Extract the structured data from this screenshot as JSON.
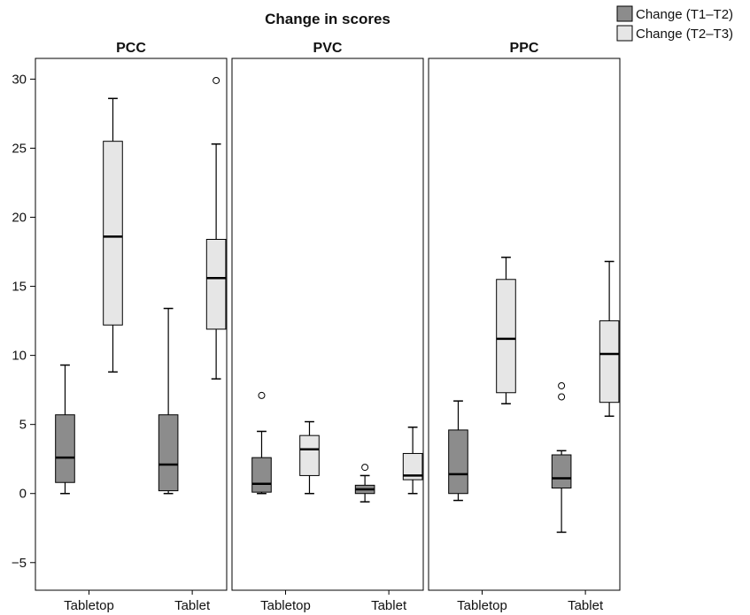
{
  "chart_data": {
    "type": "boxplot",
    "title": "Change in scores",
    "legend": {
      "placement": "top-right",
      "entries": [
        {
          "label": "Change (T1–T2)",
          "color": "#8c8c8c"
        },
        {
          "label": "Change (T2–T3)",
          "color": "#e6e6e6"
        }
      ]
    },
    "ylim": [
      -7,
      31.5
    ],
    "y_ticks": [
      -5,
      0,
      5,
      10,
      15,
      20,
      25,
      30
    ],
    "y_tick_labels": [
      "−5",
      "0",
      "5",
      "10",
      "15",
      "20",
      "25",
      "30"
    ],
    "grid": false,
    "panels": [
      {
        "title": "PCC",
        "categories": [
          "Tabletop",
          "Tablet"
        ],
        "groups": [
          {
            "category": "Tabletop",
            "series": "Change (T1–T2)",
            "min": 0,
            "q1": 0.8,
            "median": 2.6,
            "q3": 5.7,
            "max": 9.3,
            "outliers": []
          },
          {
            "category": "Tabletop",
            "series": "Change (T2–T3)",
            "min": 8.8,
            "q1": 12.2,
            "median": 18.6,
            "q3": 25.5,
            "max": 28.6,
            "outliers": []
          },
          {
            "category": "Tablet",
            "series": "Change (T1–T2)",
            "min": 0,
            "q1": 0.2,
            "median": 2.1,
            "q3": 5.7,
            "max": 13.4,
            "outliers": []
          },
          {
            "category": "Tablet",
            "series": "Change (T2–T3)",
            "min": 8.3,
            "q1": 11.9,
            "median": 15.6,
            "q3": 18.4,
            "max": 25.3,
            "outliers": [
              29.9
            ]
          }
        ]
      },
      {
        "title": "PVC",
        "categories": [
          "Tabletop",
          "Tablet"
        ],
        "groups": [
          {
            "category": "Tabletop",
            "series": "Change (T1–T2)",
            "min": 0,
            "q1": 0.1,
            "median": 0.7,
            "q3": 2.6,
            "max": 4.5,
            "outliers": [
              7.1
            ]
          },
          {
            "category": "Tabletop",
            "series": "Change (T2–T3)",
            "min": 0,
            "q1": 1.3,
            "median": 3.2,
            "q3": 4.2,
            "max": 5.2,
            "outliers": []
          },
          {
            "category": "Tablet",
            "series": "Change (T1–T2)",
            "min": -0.6,
            "q1": 0.0,
            "median": 0.3,
            "q3": 0.6,
            "max": 1.3,
            "outliers": [
              1.9
            ]
          },
          {
            "category": "Tablet",
            "series": "Change (T2–T3)",
            "min": 0,
            "q1": 1.0,
            "median": 1.3,
            "q3": 2.9,
            "max": 4.8,
            "outliers": []
          }
        ]
      },
      {
        "title": "PPC",
        "categories": [
          "Tabletop",
          "Tablet"
        ],
        "groups": [
          {
            "category": "Tabletop",
            "series": "Change (T1–T2)",
            "min": -0.5,
            "q1": 0.0,
            "median": 1.4,
            "q3": 4.6,
            "max": 6.7,
            "outliers": []
          },
          {
            "category": "Tabletop",
            "series": "Change (T2–T3)",
            "min": 6.5,
            "q1": 7.3,
            "median": 11.2,
            "q3": 15.5,
            "max": 17.1,
            "outliers": []
          },
          {
            "category": "Tablet",
            "series": "Change (T1–T2)",
            "min": -2.8,
            "q1": 0.4,
            "median": 1.1,
            "q3": 2.8,
            "max": 3.1,
            "outliers": [
              7.0,
              7.8
            ]
          },
          {
            "category": "Tablet",
            "series": "Change (T2–T3)",
            "min": 5.6,
            "q1": 6.6,
            "median": 10.1,
            "q3": 12.5,
            "max": 16.8,
            "outliers": []
          }
        ]
      }
    ]
  }
}
